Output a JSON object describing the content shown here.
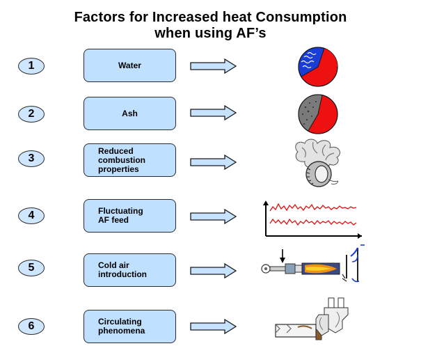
{
  "title": {
    "line1": "Factors for Increased heat Consumption",
    "line2": "when using AF’s"
  },
  "colors": {
    "box_fill": "#bfe0ff",
    "circle_fill": "#cfe6ff",
    "arrow_fill": "#c7e2ff",
    "pie_red": "#ee1111",
    "water_blue": "#1a3dd6",
    "ash_gray": "#7a7a7a"
  },
  "factors": [
    {
      "number": "1",
      "label": "Water",
      "icon": "water-pie-icon"
    },
    {
      "number": "2",
      "label": "Ash",
      "icon": "ash-pie-icon"
    },
    {
      "number": "3",
      "label": "Reduced\ncombustion\nproperties",
      "icon": "tire-combustion-icon"
    },
    {
      "number": "4",
      "label": "Fluctuating\nAF feed",
      "icon": "fluctuating-feed-graph-icon"
    },
    {
      "number": "5",
      "label": "Cold air\nintroduction",
      "icon": "burner-flame-icon"
    },
    {
      "number": "6",
      "label": "Circulating\nphenomena",
      "icon": "kiln-preheater-icon"
    }
  ]
}
